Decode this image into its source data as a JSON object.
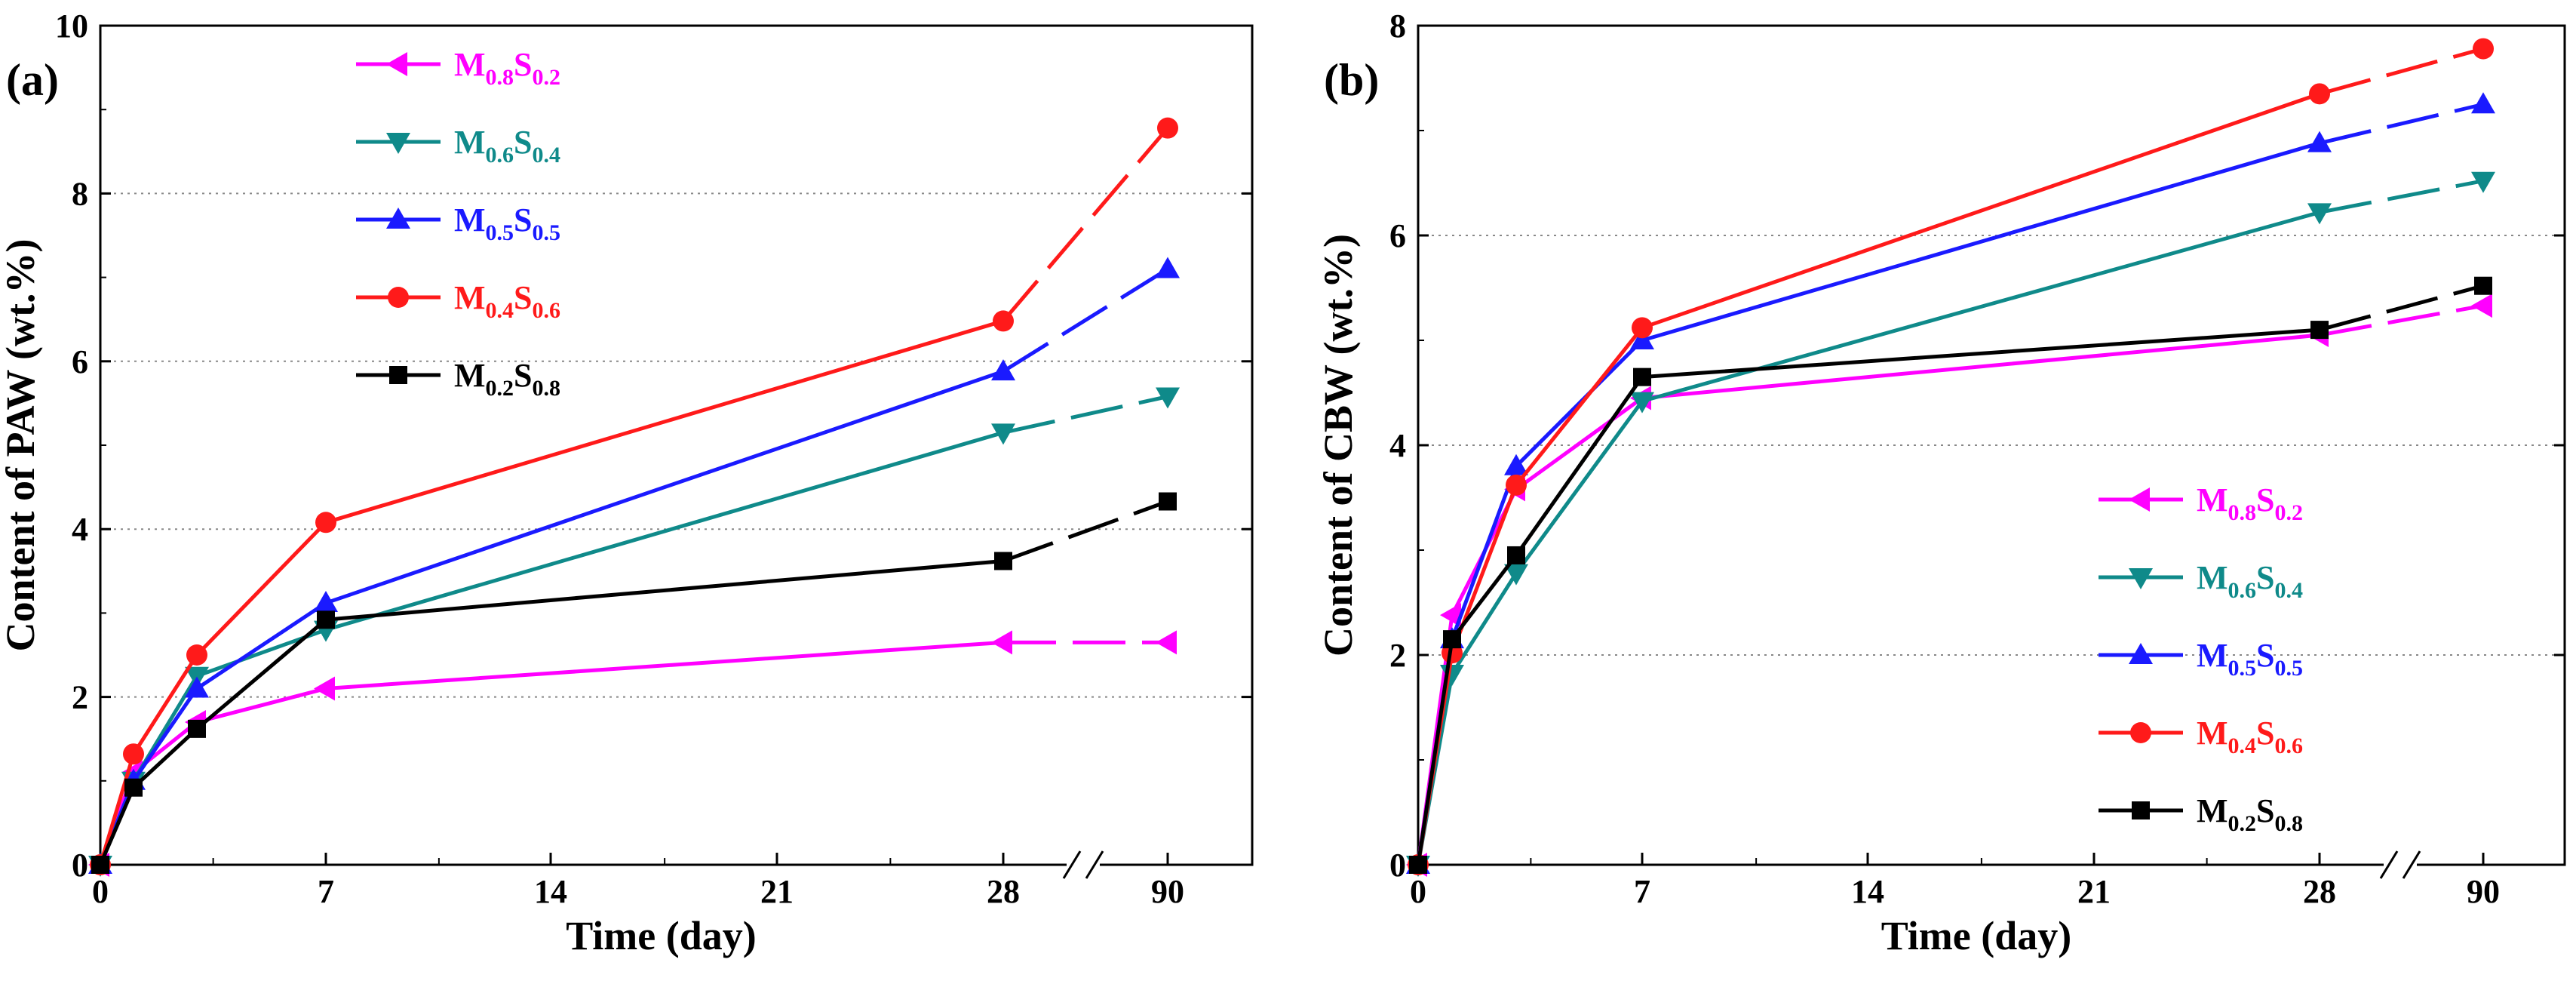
{
  "chart_data": [
    {
      "type": "line",
      "panel_label": "(a)",
      "xlabel": "Time (day)",
      "ylabel": "Content of PAW (wt.%)",
      "x_ticks": [
        "0",
        "7",
        "14",
        "21",
        "28",
        "90"
      ],
      "y_ticks": [
        "0",
        "2",
        "4",
        "6",
        "8",
        "10"
      ],
      "ylim": [
        0,
        10
      ],
      "x_axis_break": "between 28 and 90",
      "grid": "horizontal dotted",
      "legend_position": "top-left",
      "x": [
        0,
        1,
        3,
        7,
        28,
        90
      ],
      "series": [
        {
          "name": "M0.8S0.2",
          "label_main": [
            "M",
            "S"
          ],
          "label_sub": [
            "0.8",
            "0.2"
          ],
          "color": "#ff00ff",
          "marker": "triangle-left",
          "values": [
            0,
            1.1,
            1.7,
            2.1,
            2.65,
            2.65
          ]
        },
        {
          "name": "M0.6S0.4",
          "label_main": [
            "M",
            "S"
          ],
          "label_sub": [
            "0.6",
            "0.4"
          ],
          "color": "#0f8a8a",
          "marker": "triangle-down",
          "values": [
            0,
            1.0,
            2.25,
            2.8,
            5.15,
            5.58
          ]
        },
        {
          "name": "M0.5S0.5",
          "label_main": [
            "M",
            "S"
          ],
          "label_sub": [
            "0.5",
            "0.5"
          ],
          "color": "#1a1aff",
          "marker": "triangle-up",
          "values": [
            0,
            1.0,
            2.1,
            3.12,
            5.88,
            7.1
          ]
        },
        {
          "name": "M0.4S0.6",
          "label_main": [
            "M",
            "S"
          ],
          "label_sub": [
            "0.4",
            "0.6"
          ],
          "color": "#ff1a1a",
          "marker": "circle",
          "values": [
            0,
            1.32,
            2.5,
            4.08,
            6.48,
            8.78
          ]
        },
        {
          "name": "M0.2S0.8",
          "label_main": [
            "M",
            "S"
          ],
          "label_sub": [
            "0.2",
            "0.8"
          ],
          "color": "#000000",
          "marker": "square",
          "values": [
            0,
            0.92,
            1.62,
            2.92,
            3.62,
            4.33
          ]
        }
      ]
    },
    {
      "type": "line",
      "panel_label": "(b)",
      "xlabel": "Time (day)",
      "ylabel": "Content of CBW (wt.%)",
      "x_ticks": [
        "0",
        "7",
        "14",
        "21",
        "28",
        "90"
      ],
      "y_ticks": [
        "0",
        "2",
        "4",
        "6",
        "8"
      ],
      "ylim": [
        0,
        8
      ],
      "x_axis_break": "between 28 and 90",
      "grid": "horizontal dotted",
      "legend_position": "bottom-right",
      "x": [
        0,
        1,
        3,
        7,
        28,
        90
      ],
      "series": [
        {
          "name": "M0.8S0.2",
          "label_main": [
            "M",
            "S"
          ],
          "label_sub": [
            "0.8",
            "0.2"
          ],
          "color": "#ff00ff",
          "marker": "triangle-left",
          "values": [
            0,
            2.38,
            3.58,
            4.45,
            5.05,
            5.33
          ]
        },
        {
          "name": "M0.6S0.4",
          "label_main": [
            "M",
            "S"
          ],
          "label_sub": [
            "0.6",
            "0.4"
          ],
          "color": "#0f8a8a",
          "marker": "triangle-down",
          "values": [
            0,
            1.82,
            2.78,
            4.42,
            6.22,
            6.52
          ]
        },
        {
          "name": "M0.5S0.5",
          "label_main": [
            "M",
            "S"
          ],
          "label_sub": [
            "0.5",
            "0.5"
          ],
          "color": "#1a1aff",
          "marker": "triangle-up",
          "values": [
            0,
            2.15,
            3.8,
            5.0,
            6.88,
            7.25
          ]
        },
        {
          "name": "M0.4S0.6",
          "label_main": [
            "M",
            "S"
          ],
          "label_sub": [
            "0.4",
            "0.6"
          ],
          "color": "#ff1a1a",
          "marker": "circle",
          "values": [
            0,
            2.02,
            3.62,
            5.12,
            7.35,
            7.78
          ]
        },
        {
          "name": "M0.2S0.8",
          "label_main": [
            "M",
            "S"
          ],
          "label_sub": [
            "0.2",
            "0.8"
          ],
          "color": "#000000",
          "marker": "square",
          "values": [
            0,
            2.15,
            2.95,
            4.65,
            5.1,
            5.52
          ]
        }
      ]
    }
  ]
}
